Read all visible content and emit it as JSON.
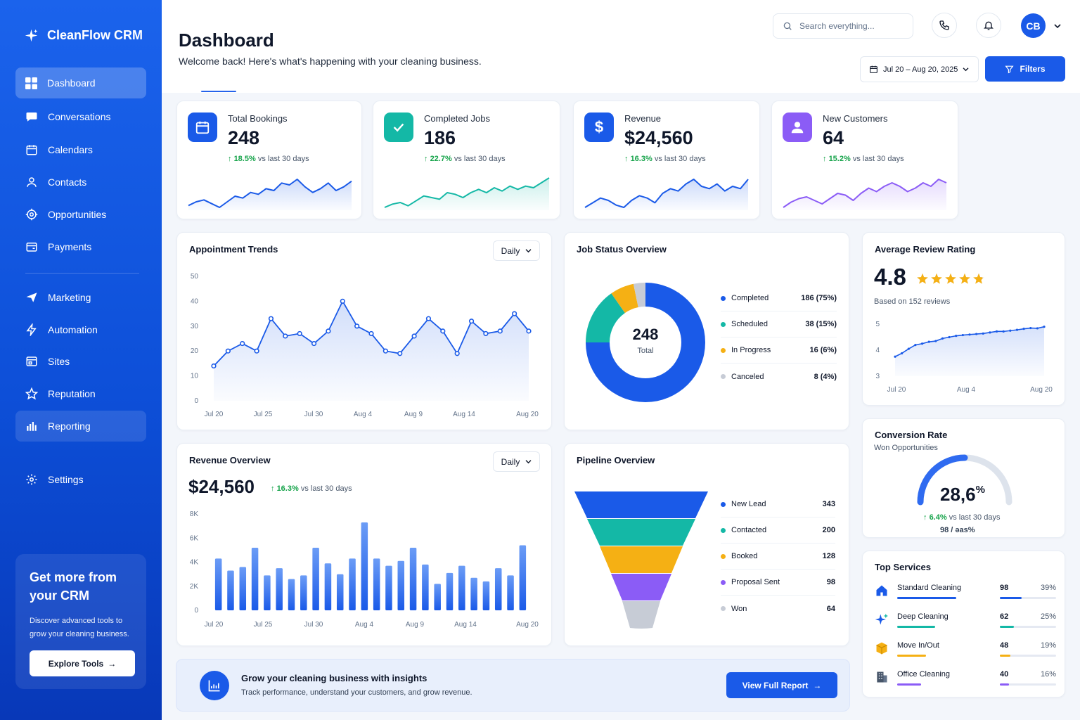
{
  "brand": {
    "name": "CleanFlow CRM"
  },
  "sidebar": {
    "items": [
      {
        "label": "Dashboard",
        "icon": "grid-icon"
      },
      {
        "label": "Conversations",
        "icon": "chat-icon"
      },
      {
        "label": "Calendars",
        "icon": "calendar-icon"
      },
      {
        "label": "Contacts",
        "icon": "user-icon"
      },
      {
        "label": "Opportunities",
        "icon": "target-icon"
      },
      {
        "label": "Payments",
        "icon": "wallet-icon"
      },
      {
        "label": "Marketing",
        "icon": "send-icon"
      },
      {
        "label": "Automation",
        "icon": "bolt-icon"
      },
      {
        "label": "Sites",
        "icon": "browser-icon"
      },
      {
        "label": "Reputation",
        "icon": "star-icon"
      },
      {
        "label": "Reporting",
        "icon": "bar-chart-icon"
      },
      {
        "label": "Settings",
        "icon": "gear-icon"
      }
    ],
    "promo": {
      "title": "Get more from your CRM",
      "text": "Discover advanced tools to grow your cleaning business.",
      "button": "Explore Tools"
    }
  },
  "header": {
    "title": "Dashboard",
    "subtitle": "Welcome back! Here's what's happening with your cleaning business.",
    "search_placeholder": "Search everything...",
    "avatar": "CB",
    "date_range": "Jul 20 – Aug 20, 2025",
    "filters": "Filters"
  },
  "kpis": [
    {
      "label": "Total Bookings",
      "value": "248",
      "change": "18.5%",
      "vs": "vs last 30 days",
      "color": "#1a5ae8",
      "icon": "calendar-icon",
      "spark": [
        10,
        12,
        13,
        11,
        9,
        12,
        15,
        14,
        17,
        16,
        19,
        18,
        22,
        21,
        24,
        20,
        17,
        19,
        22,
        18,
        20,
        23
      ]
    },
    {
      "label": "Completed Jobs",
      "value": "186",
      "change": "22.7%",
      "vs": "vs last 30 days",
      "color": "#14b8a6",
      "icon": "check-icon",
      "spark": [
        9,
        11,
        12,
        10,
        13,
        16,
        15,
        14,
        18,
        17,
        15,
        18,
        20,
        18,
        21,
        19,
        22,
        20,
        22,
        21,
        24,
        27
      ]
    },
    {
      "label": "Revenue",
      "value": "$24,560",
      "change": "16.3%",
      "vs": "vs last 30 days",
      "color": "#1a5ae8",
      "icon": "dollar-icon",
      "spark": [
        10,
        12,
        14,
        13,
        11,
        10,
        13,
        15,
        14,
        12,
        16,
        18,
        17,
        20,
        22,
        19,
        18,
        20,
        17,
        19,
        18,
        22
      ]
    },
    {
      "label": "New Customers",
      "value": "64",
      "change": "15.2%",
      "vs": "vs last 30 days",
      "color": "#8b5cf6",
      "icon": "person-icon",
      "spark": [
        8,
        11,
        13,
        14,
        12,
        10,
        13,
        16,
        15,
        12,
        16,
        19,
        17,
        20,
        22,
        20,
        17,
        19,
        22,
        20,
        24,
        22
      ]
    }
  ],
  "appointment_trends": {
    "title": "Appointment Trends",
    "period": "Daily",
    "chart_data": {
      "type": "area",
      "x_ticks": [
        "Jul 20",
        "Jul 25",
        "Jul 30",
        "Aug 4",
        "Aug 9",
        "Aug 14",
        "Aug 20"
      ],
      "ylim": [
        0,
        50
      ],
      "y_ticks": [
        0,
        10,
        20,
        30,
        40,
        50
      ],
      "values": [
        14,
        20,
        23,
        20,
        33,
        26,
        27,
        23,
        28,
        40,
        30,
        27,
        20,
        19,
        26,
        33,
        28,
        19,
        32,
        27,
        28,
        35,
        28
      ]
    }
  },
  "job_status": {
    "title": "Job Status Overview",
    "total": "248",
    "total_label": "Total",
    "chart_data": {
      "type": "pie",
      "slices": [
        {
          "name": "Completed",
          "value": 186,
          "label": "186 (75%)",
          "color": "#1a5ae8"
        },
        {
          "name": "Scheduled",
          "value": 38,
          "label": "38 (15%)",
          "color": "#14b8a6"
        },
        {
          "name": "In Progress",
          "value": 16,
          "label": "16 (6%)",
          "color": "#f5b014"
        },
        {
          "name": "Canceled",
          "value": 8,
          "label": "8 (4%)",
          "color": "#c7ccd6"
        }
      ]
    }
  },
  "review_rating": {
    "title": "Average Review Rating",
    "score": "4.8",
    "stars": 4.8,
    "based_on": "Based on 152 reviews",
    "chart_data": {
      "type": "area",
      "x_ticks": [
        "Jul 20",
        "Aug 4",
        "Aug 20"
      ],
      "ylim": [
        3,
        5
      ],
      "y_ticks": [
        3,
        4,
        5
      ],
      "values": [
        3.75,
        3.88,
        4.05,
        4.2,
        4.25,
        4.32,
        4.35,
        4.45,
        4.5,
        4.55,
        4.58,
        4.6,
        4.62,
        4.64,
        4.68,
        4.72,
        4.72,
        4.75,
        4.78,
        4.82,
        4.85,
        4.84,
        4.9
      ]
    }
  },
  "revenue_overview": {
    "title": "Revenue Overview",
    "period": "Daily",
    "value": "$24,560",
    "change": "16.3%",
    "vs": "vs last 30 days",
    "chart_data": {
      "type": "bar",
      "x_ticks": [
        "Jul 20",
        "Jul 25",
        "Jul 30",
        "Aug 4",
        "Aug 9",
        "Aug 14",
        "Aug 20"
      ],
      "ylim": [
        0,
        8000
      ],
      "y_ticks": [
        "0",
        "2K",
        "4K",
        "6K",
        "8K"
      ],
      "values": [
        4300,
        3300,
        3600,
        5200,
        2900,
        3500,
        2600,
        2900,
        5200,
        3900,
        3000,
        4300,
        7300,
        4300,
        3700,
        4100,
        5200,
        3800,
        2200,
        3100,
        3700,
        2700,
        2400,
        3500,
        2900,
        5400
      ]
    }
  },
  "pipeline": {
    "title": "Pipeline Overview",
    "chart_data": {
      "type": "funnel",
      "stages": [
        {
          "name": "New Lead",
          "value": 343,
          "color": "#1a5ae8"
        },
        {
          "name": "Contacted",
          "value": 200,
          "color": "#14b8a6"
        },
        {
          "name": "Booked",
          "value": 128,
          "color": "#f5b014"
        },
        {
          "name": "Proposal Sent",
          "value": 98,
          "color": "#8b5cf6"
        },
        {
          "name": "Won",
          "value": 64,
          "color": "#c7ccd6"
        }
      ]
    }
  },
  "conversion": {
    "title": "Conversion Rate",
    "subtitle": "Won Opportunities",
    "value": "28,6",
    "unit": "%",
    "gauge_fraction": 0.5,
    "change": "6.4%",
    "vs": "vs last 30 days",
    "ratio": "98 / ǝas%"
  },
  "top_services": {
    "title": "Top Services",
    "items": [
      {
        "name": "Standard Cleaning",
        "value": "98",
        "pct": "39%",
        "fraction": 0.39,
        "color": "#1a5ae8",
        "icon": "house-icon"
      },
      {
        "name": "Deep Cleaning",
        "value": "62",
        "pct": "25%",
        "fraction": 0.25,
        "color": "#14b8a6",
        "icon": "sparkle-icon"
      },
      {
        "name": "Move In/Out",
        "value": "48",
        "pct": "19%",
        "fraction": 0.19,
        "color": "#f5b014",
        "icon": "box-icon"
      },
      {
        "name": "Office Cleaning",
        "value": "40",
        "pct": "16%",
        "fraction": 0.16,
        "color": "#8b5cf6",
        "icon": "building-icon"
      }
    ]
  },
  "banner": {
    "title": "Grow your cleaning business with insights",
    "text": "Track performance, understand your customers, and grow revenue.",
    "button": "View Full Report"
  }
}
